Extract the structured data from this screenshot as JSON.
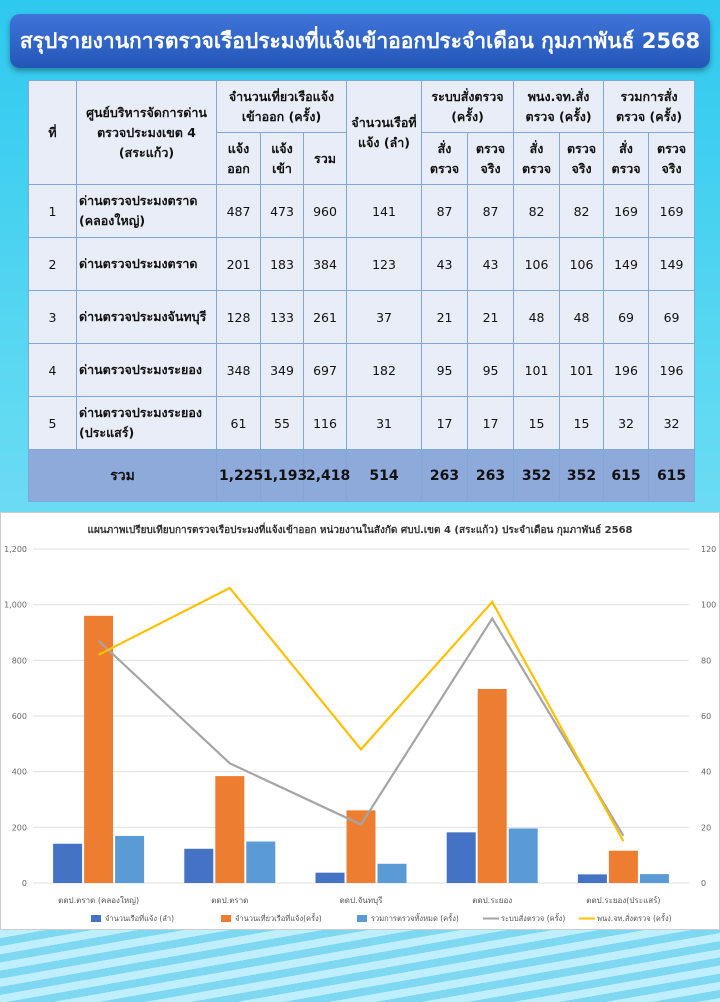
{
  "title": "สรุปรายงานการตรวจเรือประมงที่แจ้งเข้าออกประจำเดือน กุมภาพันธ์ 2568",
  "table": {
    "headers": {
      "no": "ที่",
      "center": "ศูนย์บริหารจัดการด่านตรวจประมงเขต 4 (สระแก้ว)",
      "trips": "จำนวนเที่ยวเรือแจ้งเข้าออก (ครั้ง)",
      "boats": "จำนวนเรือที่แจ้ง (ลำ)",
      "system": "ระบบสั่งตรวจ (ครั้ง)",
      "officer": "พนง.จท.สั่งตรวจ (ครั้ง)",
      "total": "รวมการสั่งตรวจ (ครั้ง)",
      "out": "แจ้งออก",
      "in": "แจ้งเข้า",
      "sum": "รวม",
      "ordered": "สั่งตรวจ",
      "actual": "ตรวจจริง"
    },
    "rows": [
      {
        "no": "1",
        "name": "ด่านตรวจประมงตราด (คลองใหญ่)",
        "out": "487",
        "in": "473",
        "sum": "960",
        "boats": "141",
        "sys_o": "87",
        "sys_a": "87",
        "off_o": "82",
        "off_a": "82",
        "tot_o": "169",
        "tot_a": "169"
      },
      {
        "no": "2",
        "name": "ด่านตรวจประมงตราด",
        "out": "201",
        "in": "183",
        "sum": "384",
        "boats": "123",
        "sys_o": "43",
        "sys_a": "43",
        "off_o": "106",
        "off_a": "106",
        "tot_o": "149",
        "tot_a": "149"
      },
      {
        "no": "3",
        "name": "ด่านตรวจประมงจันทบุรี",
        "out": "128",
        "in": "133",
        "sum": "261",
        "boats": "37",
        "sys_o": "21",
        "sys_a": "21",
        "off_o": "48",
        "off_a": "48",
        "tot_o": "69",
        "tot_a": "69"
      },
      {
        "no": "4",
        "name": "ด่านตรวจประมงระยอง",
        "out": "348",
        "in": "349",
        "sum": "697",
        "boats": "182",
        "sys_o": "95",
        "sys_a": "95",
        "off_o": "101",
        "off_a": "101",
        "tot_o": "196",
        "tot_a": "196"
      },
      {
        "no": "5",
        "name": "ด่านตรวจประมงระยอง (ประแสร์)",
        "out": "61",
        "in": "55",
        "sum": "116",
        "boats": "31",
        "sys_o": "17",
        "sys_a": "17",
        "off_o": "15",
        "off_a": "15",
        "tot_o": "32",
        "tot_a": "32"
      }
    ],
    "total": {
      "label": "รวม",
      "out": "1,225",
      "in": "1,193",
      "sum": "2,418",
      "boats": "514",
      "sys_o": "263",
      "sys_a": "263",
      "off_o": "352",
      "off_a": "352",
      "tot_o": "615",
      "tot_a": "615"
    }
  },
  "chart_data": {
    "type": "bar+line",
    "title": "แผนภาพเปรียบเทียบการตรวจเรือประมงที่แจ้งเข้าออก หน่วยงานในสังกัด ศบป.เขต 4 (สระแก้ว) ประจำเดือน กุมภาพันธ์ 2568",
    "categories": [
      "ตดป.ตราด (คลองใหญ่)",
      "ตดป.ตราด",
      "ตดป.จันทบุรี",
      "ตดป.ระยอง",
      "ตดป.ระยอง(ประแสร์)"
    ],
    "ylim": [
      0,
      1200
    ],
    "y2lim": [
      0,
      120
    ],
    "yticks": [
      "0",
      "200",
      "400",
      "600",
      "800",
      "1,000",
      "1,200"
    ],
    "y2ticks": [
      "0",
      "20",
      "40",
      "60",
      "80",
      "100",
      "120"
    ],
    "legend_position": "bottom",
    "grid": true,
    "series": [
      {
        "name": "จำนวนเรือที่แจ้ง (ลำ)",
        "type": "bar",
        "axis": "left",
        "color": "#4472c4",
        "values": [
          141,
          123,
          37,
          182,
          31
        ]
      },
      {
        "name": "จำนวนเที่ยวเรือที่แจ้ง(ครั้ง)",
        "type": "bar",
        "axis": "left",
        "color": "#ed7d31",
        "values": [
          960,
          384,
          261,
          697,
          116
        ]
      },
      {
        "name": "รวมการตรวจทั้งหมด (ครั้ง)",
        "type": "bar",
        "axis": "left",
        "color": "#5b9bd5",
        "values": [
          169,
          149,
          69,
          196,
          32
        ]
      },
      {
        "name": "ระบบสั่งตรวจ (ครั้ง)",
        "type": "line",
        "axis": "right",
        "color": "#a5a5a5",
        "values": [
          87,
          43,
          21,
          95,
          17
        ]
      },
      {
        "name": "พนง.จท.สั่งตรวจ (ครั้ง)",
        "type": "line",
        "axis": "right",
        "color": "#ffc000",
        "values": [
          82,
          106,
          48,
          101,
          15
        ]
      }
    ]
  }
}
